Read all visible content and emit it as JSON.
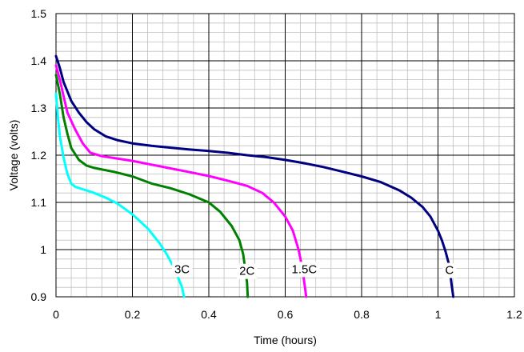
{
  "chart_data": {
    "type": "line",
    "title": "",
    "xlabel": "Time (hours)",
    "ylabel": "Voltage (volts)",
    "xlim": [
      0,
      1.2
    ],
    "ylim": [
      0.9,
      1.5
    ],
    "x_major_ticks": [
      "0",
      "0.2",
      "0.4",
      "0.6",
      "0.8",
      "1",
      "1.2"
    ],
    "y_major_ticks": [
      "0.9",
      "1",
      "1.1",
      "1.2",
      "1.3",
      "1.4",
      "1.5"
    ],
    "grid": true,
    "minor_grid": true,
    "legend": "none",
    "series": [
      {
        "name": "C",
        "color": "#000080",
        "label_at": [
          1.03,
          0.955
        ],
        "points": [
          [
            0,
            1.41
          ],
          [
            0.01,
            1.385
          ],
          [
            0.02,
            1.355
          ],
          [
            0.04,
            1.315
          ],
          [
            0.06,
            1.29
          ],
          [
            0.08,
            1.27
          ],
          [
            0.1,
            1.255
          ],
          [
            0.13,
            1.24
          ],
          [
            0.16,
            1.232
          ],
          [
            0.2,
            1.225
          ],
          [
            0.25,
            1.22
          ],
          [
            0.3,
            1.216
          ],
          [
            0.35,
            1.212
          ],
          [
            0.4,
            1.209
          ],
          [
            0.45,
            1.205
          ],
          [
            0.5,
            1.2
          ],
          [
            0.55,
            1.196
          ],
          [
            0.6,
            1.19
          ],
          [
            0.65,
            1.183
          ],
          [
            0.7,
            1.175
          ],
          [
            0.75,
            1.165
          ],
          [
            0.8,
            1.155
          ],
          [
            0.85,
            1.143
          ],
          [
            0.9,
            1.125
          ],
          [
            0.93,
            1.11
          ],
          [
            0.96,
            1.09
          ],
          [
            0.98,
            1.07
          ],
          [
            1.0,
            1.04
          ],
          [
            1.01,
            1.02
          ],
          [
            1.02,
            0.995
          ],
          [
            1.03,
            0.965
          ],
          [
            1.035,
            0.93
          ],
          [
            1.04,
            0.9
          ]
        ]
      },
      {
        "name": "1.5C",
        "color": "#ff00ff",
        "label_at": [
          0.65,
          0.957
        ],
        "points": [
          [
            0,
            1.39
          ],
          [
            0.01,
            1.36
          ],
          [
            0.02,
            1.325
          ],
          [
            0.03,
            1.29
          ],
          [
            0.05,
            1.255
          ],
          [
            0.07,
            1.225
          ],
          [
            0.09,
            1.205
          ],
          [
            0.12,
            1.198
          ],
          [
            0.16,
            1.193
          ],
          [
            0.2,
            1.188
          ],
          [
            0.25,
            1.18
          ],
          [
            0.3,
            1.172
          ],
          [
            0.35,
            1.164
          ],
          [
            0.4,
            1.156
          ],
          [
            0.45,
            1.146
          ],
          [
            0.5,
            1.135
          ],
          [
            0.54,
            1.12
          ],
          [
            0.57,
            1.1
          ],
          [
            0.6,
            1.07
          ],
          [
            0.62,
            1.04
          ],
          [
            0.635,
            1.0
          ],
          [
            0.645,
            0.96
          ],
          [
            0.65,
            0.93
          ],
          [
            0.655,
            0.9
          ]
        ]
      },
      {
        "name": "2C",
        "color": "#008000",
        "label_at": [
          0.5,
          0.953
        ],
        "points": [
          [
            0,
            1.37
          ],
          [
            0.01,
            1.33
          ],
          [
            0.02,
            1.28
          ],
          [
            0.03,
            1.245
          ],
          [
            0.04,
            1.215
          ],
          [
            0.06,
            1.19
          ],
          [
            0.08,
            1.178
          ],
          [
            0.1,
            1.173
          ],
          [
            0.15,
            1.165
          ],
          [
            0.2,
            1.155
          ],
          [
            0.25,
            1.14
          ],
          [
            0.3,
            1.13
          ],
          [
            0.35,
            1.117
          ],
          [
            0.4,
            1.1
          ],
          [
            0.43,
            1.08
          ],
          [
            0.46,
            1.05
          ],
          [
            0.48,
            1.02
          ],
          [
            0.49,
            0.99
          ],
          [
            0.495,
            0.96
          ],
          [
            0.5,
            0.93
          ],
          [
            0.502,
            0.9
          ]
        ]
      },
      {
        "name": "3C",
        "color": "#00ffff",
        "label_at": [
          0.33,
          0.957
        ],
        "points": [
          [
            0,
            1.33
          ],
          [
            0.005,
            1.28
          ],
          [
            0.01,
            1.24
          ],
          [
            0.02,
            1.195
          ],
          [
            0.03,
            1.16
          ],
          [
            0.04,
            1.14
          ],
          [
            0.05,
            1.133
          ],
          [
            0.07,
            1.128
          ],
          [
            0.1,
            1.12
          ],
          [
            0.13,
            1.11
          ],
          [
            0.16,
            1.098
          ],
          [
            0.2,
            1.075
          ],
          [
            0.24,
            1.045
          ],
          [
            0.27,
            1.015
          ],
          [
            0.29,
            0.99
          ],
          [
            0.31,
            0.96
          ],
          [
            0.32,
            0.94
          ],
          [
            0.33,
            0.92
          ],
          [
            0.335,
            0.9
          ]
        ]
      }
    ]
  }
}
